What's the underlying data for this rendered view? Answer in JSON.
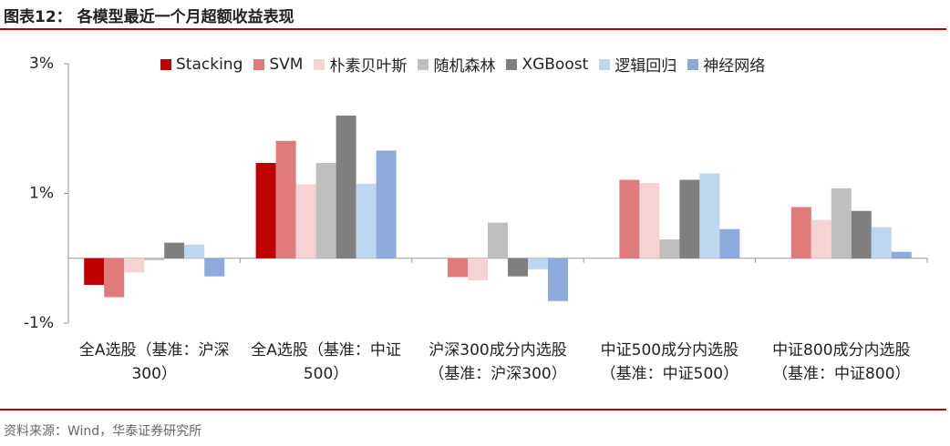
{
  "title": "图表12： 各模型最近一个月超额收益表现",
  "source": "资料来源：Wind，华泰证券研究所",
  "chart_data": {
    "type": "bar",
    "categories": [
      "全A选股（基准：沪深300）",
      "全A选股（基准：中证500）",
      "沪深300成分内选股（基准：沪深300）",
      "中证500成分内选股（基准：中证500）",
      "中证800成分内选股（基准：中证800）"
    ],
    "series": [
      {
        "name": "Stacking",
        "color": "#c00000",
        "values": [
          -0.41,
          1.47,
          null,
          null,
          null
        ]
      },
      {
        "name": "SVM",
        "color": "#e07b7b",
        "values": [
          -0.6,
          1.81,
          -0.29,
          1.21,
          0.79
        ]
      },
      {
        "name": "朴素贝叶斯",
        "color": "#f6d3d3",
        "values": [
          -0.22,
          1.14,
          -0.34,
          1.16,
          0.59
        ]
      },
      {
        "name": "随机森林",
        "color": "#bfbfbf",
        "values": [
          -0.03,
          1.47,
          0.55,
          0.29,
          1.08
        ]
      },
      {
        "name": "XGBoost",
        "color": "#7f7f7f",
        "values": [
          0.24,
          2.2,
          -0.28,
          1.21,
          0.73
        ]
      },
      {
        "name": "逻辑回归",
        "color": "#bdd7ee",
        "values": [
          0.21,
          1.15,
          -0.17,
          1.31,
          0.48
        ]
      },
      {
        "name": "神经网络",
        "color": "#8eaadb",
        "values": [
          -0.28,
          1.66,
          -0.66,
          0.45,
          0.1
        ]
      }
    ],
    "ylim": [
      -1,
      3
    ],
    "yticks": [
      {
        "value": -1,
        "label": "-1%"
      },
      {
        "value": 1,
        "label": "1%"
      },
      {
        "value": 3,
        "label": "3%"
      }
    ],
    "grid": false,
    "legend": "top"
  }
}
